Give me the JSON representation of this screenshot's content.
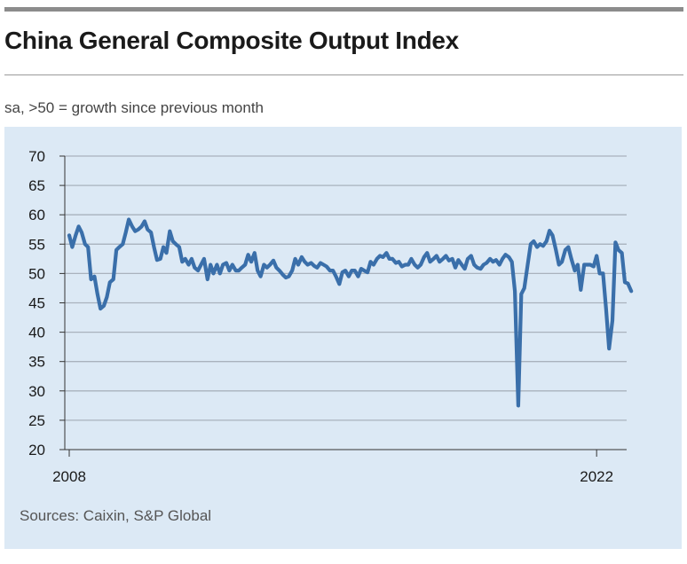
{
  "title": "China General Composite Output Index",
  "subtitle": "sa, >50 = growth since previous month",
  "source": "Sources: Caixin, S&P Global",
  "colors": {
    "line": "#3a6faa",
    "grid": "#a9b2bd",
    "panel": "#dce9f5"
  },
  "chart_data": {
    "type": "line",
    "title": "China General Composite Output Index",
    "subtitle": "sa, >50 = growth since previous month",
    "xlabel": "",
    "ylabel": "",
    "ylim": [
      20,
      70
    ],
    "yticks": [
      20,
      25,
      30,
      35,
      40,
      45,
      50,
      55,
      60,
      65,
      70
    ],
    "xlim": [
      2008.0,
      2022.75
    ],
    "xtick_labels": [
      {
        "value": 2008,
        "label": "2008"
      },
      {
        "value": 2022,
        "label": "2022"
      }
    ],
    "grid": "horizontal",
    "series": [
      {
        "name": "",
        "points": [
          [
            2008.0,
            56.5
          ],
          [
            2008.08,
            54.5
          ],
          [
            2008.17,
            56.5
          ],
          [
            2008.25,
            58.0
          ],
          [
            2008.33,
            57.0
          ],
          [
            2008.42,
            55.0
          ],
          [
            2008.5,
            54.5
          ],
          [
            2008.58,
            49.0
          ],
          [
            2008.67,
            49.5
          ],
          [
            2008.75,
            46.5
          ],
          [
            2008.83,
            44.0
          ],
          [
            2008.92,
            44.5
          ],
          [
            2009.0,
            46.0
          ],
          [
            2009.08,
            48.5
          ],
          [
            2009.17,
            49.0
          ],
          [
            2009.25,
            54.0
          ],
          [
            2009.33,
            54.5
          ],
          [
            2009.42,
            55.0
          ],
          [
            2009.5,
            57.0
          ],
          [
            2009.58,
            59.2
          ],
          [
            2009.67,
            58.0
          ],
          [
            2009.75,
            57.2
          ],
          [
            2009.83,
            57.5
          ],
          [
            2009.92,
            58.0
          ],
          [
            2010.0,
            58.9
          ],
          [
            2010.08,
            57.5
          ],
          [
            2010.17,
            57.0
          ],
          [
            2010.25,
            54.5
          ],
          [
            2010.33,
            52.3
          ],
          [
            2010.42,
            52.5
          ],
          [
            2010.5,
            54.5
          ],
          [
            2010.58,
            53.5
          ],
          [
            2010.67,
            57.2
          ],
          [
            2010.75,
            55.5
          ],
          [
            2010.83,
            55.0
          ],
          [
            2010.92,
            54.5
          ],
          [
            2011.0,
            52.0
          ],
          [
            2011.08,
            52.5
          ],
          [
            2011.17,
            51.5
          ],
          [
            2011.25,
            52.5
          ],
          [
            2011.33,
            51.0
          ],
          [
            2011.42,
            50.5
          ],
          [
            2011.5,
            51.5
          ],
          [
            2011.58,
            52.5
          ],
          [
            2011.67,
            49.0
          ],
          [
            2011.75,
            51.5
          ],
          [
            2011.83,
            50.0
          ],
          [
            2011.92,
            51.5
          ],
          [
            2012.0,
            50.0
          ],
          [
            2012.08,
            51.5
          ],
          [
            2012.17,
            51.8
          ],
          [
            2012.25,
            50.5
          ],
          [
            2012.33,
            51.5
          ],
          [
            2012.42,
            50.5
          ],
          [
            2012.5,
            50.5
          ],
          [
            2012.58,
            51.0
          ],
          [
            2012.67,
            51.5
          ],
          [
            2012.75,
            53.2
          ],
          [
            2012.83,
            52.0
          ],
          [
            2012.92,
            53.5
          ],
          [
            2013.0,
            50.5
          ],
          [
            2013.08,
            49.5
          ],
          [
            2013.17,
            51.5
          ],
          [
            2013.25,
            51.0
          ],
          [
            2013.33,
            51.5
          ],
          [
            2013.42,
            52.2
          ],
          [
            2013.5,
            51.0
          ],
          [
            2013.58,
            50.5
          ],
          [
            2013.67,
            49.8
          ],
          [
            2013.75,
            49.3
          ],
          [
            2013.83,
            49.5
          ],
          [
            2013.92,
            50.5
          ],
          [
            2014.0,
            52.5
          ],
          [
            2014.08,
            51.5
          ],
          [
            2014.17,
            52.8
          ],
          [
            2014.25,
            52.0
          ],
          [
            2014.33,
            51.5
          ],
          [
            2014.42,
            51.8
          ],
          [
            2014.5,
            51.3
          ],
          [
            2014.58,
            51.0
          ],
          [
            2014.67,
            51.8
          ],
          [
            2014.75,
            51.5
          ],
          [
            2014.83,
            51.2
          ],
          [
            2014.92,
            50.5
          ],
          [
            2015.0,
            50.5
          ],
          [
            2015.08,
            49.5
          ],
          [
            2015.17,
            48.2
          ],
          [
            2015.25,
            50.2
          ],
          [
            2015.33,
            50.5
          ],
          [
            2015.42,
            49.5
          ],
          [
            2015.5,
            50.5
          ],
          [
            2015.58,
            50.5
          ],
          [
            2015.67,
            49.5
          ],
          [
            2015.75,
            50.8
          ],
          [
            2015.83,
            50.5
          ],
          [
            2015.92,
            50.2
          ],
          [
            2016.0,
            52.0
          ],
          [
            2016.08,
            51.5
          ],
          [
            2016.17,
            52.5
          ],
          [
            2016.25,
            53.0
          ],
          [
            2016.33,
            52.8
          ],
          [
            2016.42,
            53.5
          ],
          [
            2016.5,
            52.5
          ],
          [
            2016.58,
            52.5
          ],
          [
            2016.67,
            51.8
          ],
          [
            2016.75,
            52.0
          ],
          [
            2016.83,
            51.2
          ],
          [
            2016.92,
            51.5
          ],
          [
            2017.0,
            51.5
          ],
          [
            2017.08,
            52.5
          ],
          [
            2017.17,
            51.5
          ],
          [
            2017.25,
            51.0
          ],
          [
            2017.33,
            51.5
          ],
          [
            2017.42,
            52.8
          ],
          [
            2017.5,
            53.5
          ],
          [
            2017.58,
            52.0
          ],
          [
            2017.67,
            52.5
          ],
          [
            2017.75,
            53.0
          ],
          [
            2017.83,
            52.0
          ],
          [
            2017.92,
            52.5
          ],
          [
            2018.0,
            53.0
          ],
          [
            2018.08,
            52.2
          ],
          [
            2018.17,
            52.5
          ],
          [
            2018.25,
            51.0
          ],
          [
            2018.33,
            52.3
          ],
          [
            2018.42,
            51.5
          ],
          [
            2018.5,
            50.8
          ],
          [
            2018.58,
            52.5
          ],
          [
            2018.67,
            53.0
          ],
          [
            2018.75,
            51.5
          ],
          [
            2018.83,
            51.0
          ],
          [
            2018.92,
            50.8
          ],
          [
            2019.0,
            51.5
          ],
          [
            2019.08,
            51.8
          ],
          [
            2019.17,
            52.5
          ],
          [
            2019.25,
            52.0
          ],
          [
            2019.33,
            52.3
          ],
          [
            2019.42,
            51.5
          ],
          [
            2019.5,
            52.5
          ],
          [
            2019.58,
            53.2
          ],
          [
            2019.67,
            52.8
          ],
          [
            2019.75,
            52.0
          ],
          [
            2019.83,
            47.0
          ],
          [
            2019.92,
            27.5
          ],
          [
            2020.0,
            46.5
          ],
          [
            2020.08,
            47.5
          ],
          [
            2020.17,
            51.5
          ],
          [
            2020.25,
            55.0
          ],
          [
            2020.33,
            55.5
          ],
          [
            2020.42,
            54.5
          ],
          [
            2020.5,
            55.0
          ],
          [
            2020.58,
            54.7
          ],
          [
            2020.67,
            55.5
          ],
          [
            2020.75,
            57.3
          ],
          [
            2020.83,
            56.5
          ],
          [
            2020.92,
            54.0
          ],
          [
            2021.0,
            51.5
          ],
          [
            2021.08,
            52.0
          ],
          [
            2021.17,
            54.0
          ],
          [
            2021.25,
            54.5
          ],
          [
            2021.33,
            52.5
          ],
          [
            2021.42,
            50.5
          ],
          [
            2021.5,
            51.5
          ],
          [
            2021.58,
            47.2
          ],
          [
            2021.67,
            51.5
          ],
          [
            2021.75,
            51.5
          ],
          [
            2021.83,
            51.5
          ],
          [
            2021.92,
            51.2
          ],
          [
            2022.0,
            53.0
          ],
          [
            2022.08,
            50.0
          ],
          [
            2022.17,
            50.0
          ],
          [
            2022.25,
            44.0
          ],
          [
            2022.33,
            37.2
          ],
          [
            2022.42,
            42.0
          ],
          [
            2022.5,
            55.3
          ],
          [
            2022.58,
            54.0
          ],
          [
            2022.67,
            53.5
          ],
          [
            2022.75,
            48.5
          ],
          [
            2022.83,
            48.3
          ],
          [
            2022.92,
            47.0
          ]
        ]
      }
    ]
  }
}
